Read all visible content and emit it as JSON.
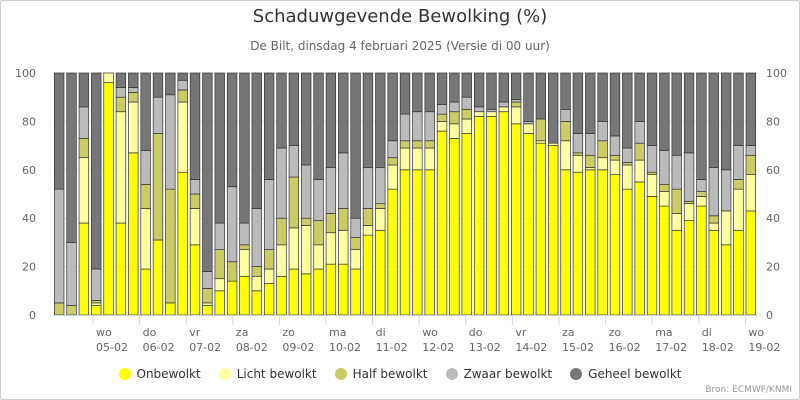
{
  "chart_data": {
    "type": "bar",
    "stacked": true,
    "title": "Schaduwgevende Bewolking (%)",
    "subtitle": "De Bilt, dinsdag 4 februari 2025 (Versie di 00 uur)",
    "ylim": [
      0,
      100
    ],
    "yticks": [
      0,
      20,
      40,
      60,
      80,
      100
    ],
    "day_labels": [
      {
        "day": "wo",
        "date": "05-02"
      },
      {
        "day": "do",
        "date": "06-02"
      },
      {
        "day": "vr",
        "date": "07-02"
      },
      {
        "day": "za",
        "date": "08-02"
      },
      {
        "day": "zo",
        "date": "09-02"
      },
      {
        "day": "ma",
        "date": "10-02"
      },
      {
        "day": "di",
        "date": "11-02"
      },
      {
        "day": "wo",
        "date": "12-02"
      },
      {
        "day": "do",
        "date": "13-02"
      },
      {
        "day": "vr",
        "date": "14-02"
      },
      {
        "day": "za",
        "date": "15-02"
      },
      {
        "day": "zo",
        "date": "16-02"
      },
      {
        "day": "ma",
        "date": "17-02"
      },
      {
        "day": "di",
        "date": "18-02"
      },
      {
        "day": "wo",
        "date": "19-02"
      }
    ],
    "series": [
      {
        "name": "Onbewolkt",
        "color": "#ffff00",
        "values": [
          0,
          0,
          38,
          4,
          96,
          38,
          67,
          19,
          31,
          5,
          59,
          29,
          4,
          10,
          14,
          16,
          10,
          13,
          16,
          19,
          17,
          19,
          21,
          21,
          19,
          33,
          35,
          52,
          60,
          60,
          60,
          76,
          73,
          75,
          82,
          82,
          84,
          79,
          75,
          71,
          70,
          60,
          59,
          60,
          60,
          58,
          52,
          55,
          49,
          45,
          35,
          39,
          45,
          35,
          29,
          35,
          43
        ]
      },
      {
        "name": "Licht bewolkt",
        "color": "#ffffa0",
        "values": [
          0,
          0,
          27,
          1,
          4,
          46,
          21,
          25,
          0,
          0,
          29,
          15,
          1,
          5,
          0,
          11,
          6,
          6,
          13,
          17,
          20,
          10,
          13,
          14,
          8,
          4,
          9,
          10,
          9,
          9,
          9,
          4,
          6,
          6,
          2,
          2,
          2,
          7,
          4,
          1,
          1,
          12,
          7,
          1,
          5,
          6,
          10,
          9,
          9,
          6,
          7,
          7,
          4,
          3,
          14,
          17,
          15
        ]
      },
      {
        "name": "Half bewolkt",
        "color": "#cccc66",
        "values": [
          5,
          4,
          8,
          1,
          0,
          6,
          4,
          10,
          44,
          47,
          5,
          6,
          6,
          12,
          8,
          2,
          4,
          8,
          11,
          21,
          3,
          10,
          8,
          9,
          5,
          7,
          2,
          3,
          3,
          3,
          3,
          3,
          5,
          4,
          0,
          0,
          0,
          2,
          0,
          9,
          0,
          8,
          1,
          5,
          7,
          2,
          1,
          7,
          1,
          3,
          10,
          1,
          2,
          3,
          0,
          4,
          8
        ]
      },
      {
        "name": "Zwaar bewolkt",
        "color": "#bbbbbb",
        "values": [
          47,
          26,
          13,
          13,
          0,
          4,
          2,
          14,
          15,
          39,
          4,
          6,
          7,
          11,
          31,
          9,
          24,
          29,
          29,
          13,
          22,
          17,
          19,
          23,
          8,
          17,
          15,
          7,
          11,
          12,
          12,
          4,
          4,
          5,
          2,
          1,
          2,
          1,
          1,
          0,
          0,
          5,
          8,
          9,
          8,
          8,
          6,
          9,
          11,
          14,
          14,
          20,
          5,
          20,
          17,
          14,
          4
        ]
      },
      {
        "name": "Geheel bewolkt",
        "color": "#777777",
        "values": [
          48,
          70,
          14,
          81,
          0,
          6,
          6,
          32,
          10,
          9,
          3,
          44,
          82,
          62,
          47,
          62,
          56,
          44,
          31,
          30,
          38,
          44,
          39,
          33,
          60,
          39,
          39,
          28,
          17,
          16,
          16,
          13,
          12,
          10,
          14,
          15,
          12,
          11,
          20,
          19,
          29,
          15,
          25,
          25,
          20,
          26,
          31,
          20,
          30,
          32,
          34,
          33,
          44,
          39,
          40,
          30,
          30
        ]
      }
    ]
  },
  "credits": "Bron: ECMWF/KNMI"
}
